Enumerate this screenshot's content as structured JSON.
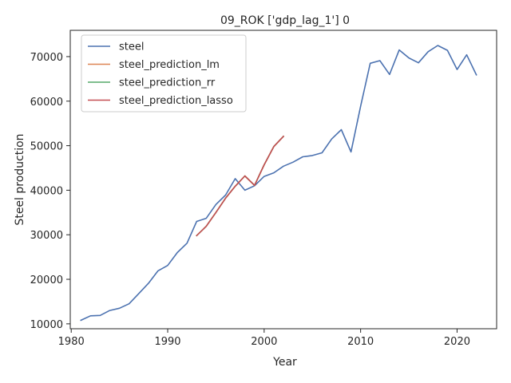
{
  "chart_data": {
    "type": "line",
    "title": "09_ROK ['gdp_lag_1'] 0",
    "xlabel": "Year",
    "ylabel": "Steel production",
    "xlim": [
      1979.9,
      2024.1
    ],
    "ylim": [
      8900,
      75900
    ],
    "xticks": [
      1980,
      1990,
      2000,
      2010,
      2020
    ],
    "yticks": [
      10000,
      20000,
      30000,
      40000,
      50000,
      60000,
      70000
    ],
    "grid": false,
    "legend_position": "top-left",
    "series": [
      {
        "name": "steel",
        "color": "#4c72b0",
        "x": [
          1981,
          1982,
          1983,
          1984,
          1985,
          1986,
          1987,
          1988,
          1989,
          1990,
          1991,
          1992,
          1993,
          1994,
          1995,
          1996,
          1997,
          1998,
          1999,
          2000,
          2001,
          2002,
          2003,
          2004,
          2005,
          2006,
          2007,
          2008,
          2009,
          2010,
          2011,
          2012,
          2013,
          2014,
          2015,
          2016,
          2017,
          2018,
          2019,
          2020,
          2021,
          2022
        ],
        "y": [
          10800,
          11800,
          11900,
          13000,
          13500,
          14500,
          16800,
          19100,
          21900,
          23100,
          26000,
          28100,
          33000,
          33700,
          36800,
          38900,
          42600,
          40000,
          41000,
          43100,
          43900,
          45400,
          46300,
          47500,
          47800,
          48400,
          51500,
          53600,
          48600,
          58900,
          68500,
          69100,
          66000,
          71500,
          69700,
          68600,
          71100,
          72500,
          71400,
          67100,
          70400,
          65900
        ]
      },
      {
        "name": "steel_prediction_lm",
        "color": "#dd8452",
        "x": [
          1993,
          1994,
          1995,
          1996,
          1997,
          1998,
          1999,
          2000,
          2001,
          2002
        ],
        "y": [
          29800,
          31900,
          35000,
          38200,
          40900,
          43200,
          41100,
          45700,
          49800,
          52100
        ]
      },
      {
        "name": "steel_prediction_rr",
        "color": "#55a868",
        "x": [
          1993,
          1994,
          1995,
          1996,
          1997,
          1998,
          1999,
          2000,
          2001,
          2002
        ],
        "y": [
          29800,
          31900,
          35000,
          38200,
          40900,
          43200,
          41100,
          45700,
          49800,
          52100
        ]
      },
      {
        "name": "steel_prediction_lasso",
        "color": "#c44e52",
        "x": [
          1993,
          1994,
          1995,
          1996,
          1997,
          1998,
          1999,
          2000,
          2001,
          2002
        ],
        "y": [
          29800,
          31900,
          35000,
          38200,
          40900,
          43200,
          41100,
          45700,
          49800,
          52100
        ]
      }
    ]
  }
}
